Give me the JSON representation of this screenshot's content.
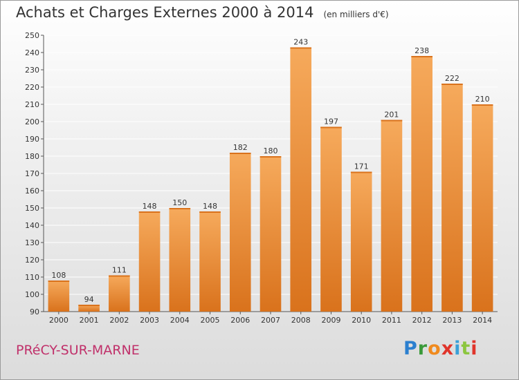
{
  "title": "Achats et Charges Externes 2000 à 2014",
  "unit": "(en milliers d'€)",
  "city": "PRéCY-SUR-MARNE",
  "logo": {
    "letters": [
      "P",
      "r",
      "o",
      "x",
      "i",
      "t",
      "i"
    ],
    "colors": [
      "#2b7fcf",
      "#3a9a3a",
      "#f08a1e",
      "#e0342b",
      "#3aa0d8",
      "#8cc63f",
      "#e0342b"
    ]
  },
  "colors": {
    "bar": "#f0903a",
    "bar_light": "#f6aa5c",
    "bar_dark": "#d9721c",
    "city": "#c0306a"
  },
  "chart_data": {
    "type": "bar",
    "categories": [
      "2000",
      "2001",
      "2002",
      "2003",
      "2004",
      "2005",
      "2006",
      "2007",
      "2008",
      "2009",
      "2010",
      "2011",
      "2012",
      "2013",
      "2014"
    ],
    "values": [
      108,
      94,
      111,
      148,
      150,
      148,
      182,
      180,
      243,
      197,
      171,
      201,
      238,
      222,
      210
    ],
    "title": "Achats et Charges Externes 2000 à 2014",
    "ylim": [
      90,
      250
    ],
    "yticks": [
      90,
      100,
      110,
      120,
      130,
      140,
      150,
      160,
      170,
      180,
      190,
      200,
      210,
      220,
      230,
      240,
      250
    ],
    "grid": true,
    "data_labels": true
  }
}
